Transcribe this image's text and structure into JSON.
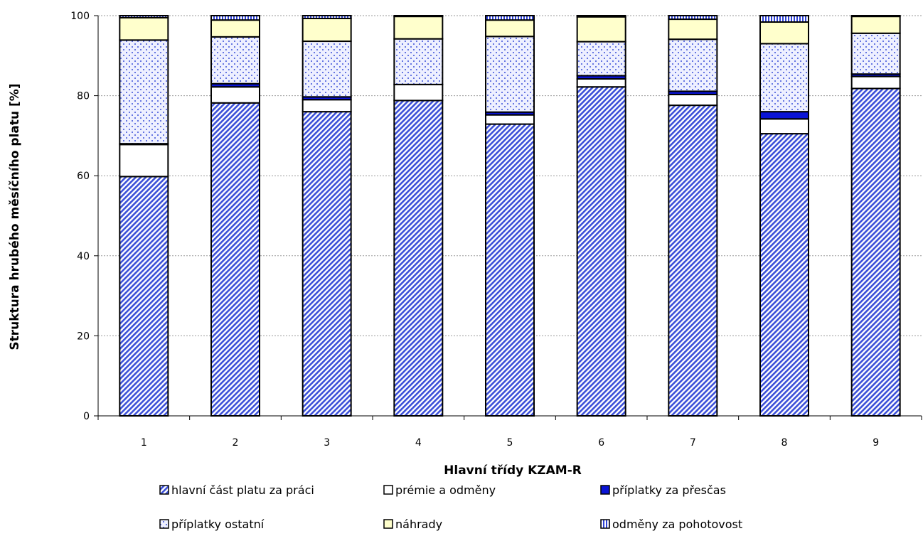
{
  "chart_data": {
    "type": "bar",
    "stacked": true,
    "title": "",
    "xlabel": "Hlavní třídy KZAM-R",
    "ylabel": "Struktura hrubého měsíčního platu [%]",
    "ylim": [
      0,
      100
    ],
    "yticks": [
      0,
      20,
      40,
      60,
      80,
      100
    ],
    "grid": true,
    "legend_position": "bottom",
    "categories": [
      "1",
      "2",
      "3",
      "4",
      "5",
      "6",
      "7",
      "8",
      "9"
    ],
    "series": [
      {
        "name": "hlavní část platu za práci",
        "pattern": "diagonal-hatch",
        "color": "#3b4fd8",
        "values": [
          59.8,
          78.2,
          76.0,
          78.8,
          72.9,
          82.2,
          77.6,
          70.5,
          81.8
        ]
      },
      {
        "name": "prémie a odměny",
        "pattern": "white",
        "color": "#ffffff",
        "values": [
          8.0,
          4.0,
          3.0,
          4.0,
          2.3,
          2.0,
          2.7,
          3.7,
          3.0
        ]
      },
      {
        "name": "příplatky  za přesčas",
        "pattern": "solid",
        "color": "#0a14d6",
        "values": [
          0.2,
          0.8,
          0.7,
          0.0,
          0.7,
          0.8,
          0.8,
          1.8,
          0.6
        ]
      },
      {
        "name": "příplatky ostatní",
        "pattern": "dots",
        "color": "#3b4fd8",
        "values": [
          25.9,
          11.7,
          13.9,
          11.4,
          18.9,
          8.5,
          13.0,
          17.0,
          10.2
        ]
      },
      {
        "name": "náhrady",
        "pattern": "solid",
        "color": "#ffffcc",
        "values": [
          5.6,
          4.2,
          5.7,
          5.6,
          4.1,
          6.2,
          5.0,
          5.4,
          4.2
        ]
      },
      {
        "name": "odměny za pohotovost",
        "pattern": "vertical-stripes",
        "color": "#2e42d6",
        "values": [
          0.5,
          1.1,
          0.7,
          0.2,
          1.1,
          0.3,
          0.9,
          1.6,
          0.2
        ]
      }
    ]
  }
}
